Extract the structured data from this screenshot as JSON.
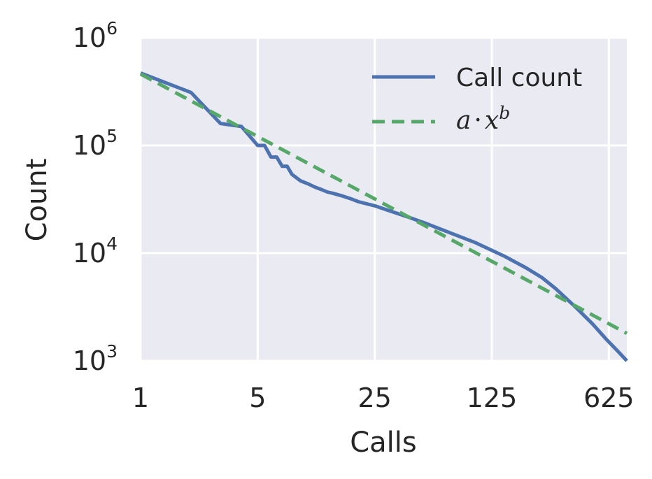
{
  "chart_data": {
    "type": "line",
    "xscale": "log",
    "yscale": "log",
    "xlabel": "Calls",
    "ylabel": "Count",
    "xlim": [
      1,
      800
    ],
    "ylim": [
      1000,
      1000000
    ],
    "xticks": [
      {
        "value": 1,
        "label": "1"
      },
      {
        "value": 5,
        "label": "5"
      },
      {
        "value": 25,
        "label": "25"
      },
      {
        "value": 125,
        "label": "125"
      },
      {
        "value": 625,
        "label": "625"
      }
    ],
    "yticks": [
      {
        "value": 1000,
        "base": "10",
        "exp": "3"
      },
      {
        "value": 10000,
        "base": "10",
        "exp": "4"
      },
      {
        "value": 100000,
        "base": "10",
        "exp": "5"
      },
      {
        "value": 1000000,
        "base": "10",
        "exp": "6"
      }
    ],
    "grid": true,
    "legend_position": "top-right",
    "series": [
      {
        "name": "Call count",
        "color": "#4c72b0",
        "style": "solid",
        "x": [
          1,
          2,
          3,
          4,
          5,
          5.5,
          6,
          6.5,
          7,
          7.5,
          8,
          9,
          10,
          11,
          12,
          13,
          14,
          16,
          18,
          20,
          25,
          30,
          40,
          50,
          70,
          100,
          150,
          200,
          250,
          300,
          400,
          500,
          600,
          700,
          800
        ],
        "y": [
          470000,
          310000,
          160000,
          150000,
          100000,
          100000,
          78000,
          78000,
          64000,
          64000,
          54000,
          47000,
          44000,
          41000,
          39000,
          37000,
          36000,
          34000,
          32000,
          30000,
          27500,
          25000,
          21500,
          19000,
          15500,
          12500,
          9300,
          7300,
          5900,
          4700,
          3100,
          2200,
          1600,
          1250,
          1000
        ]
      },
      {
        "name": "a · x^b",
        "legend_label": {
          "a": "a",
          "dot": "·",
          "x": "x",
          "b": "b"
        },
        "color": "#55a868",
        "style": "dashed",
        "x": [
          1,
          800
        ],
        "y": [
          460000,
          1800
        ]
      }
    ]
  }
}
